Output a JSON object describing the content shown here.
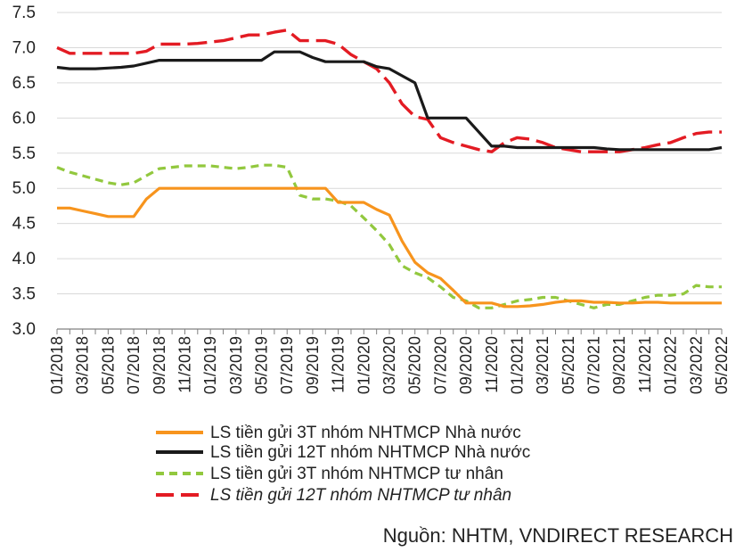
{
  "chart_data": {
    "type": "line",
    "title": "",
    "xlabel": "",
    "ylabel": "",
    "ylim": [
      3.0,
      7.5
    ],
    "yticks": [
      "7.5",
      "7.0",
      "6.5",
      "6.0",
      "5.5",
      "5.0",
      "4.5",
      "4.0",
      "3.5",
      "3.0"
    ],
    "x_tick_labels": [
      "01/2018",
      "03/2018",
      "05/2018",
      "07/2018",
      "09/2018",
      "11/2018",
      "01/2019",
      "03/2019",
      "05/2019",
      "07/2019",
      "09/2019",
      "11/2019",
      "01/2020",
      "03/2020",
      "05/2020",
      "07/2020",
      "09/2020",
      "11/2020",
      "01/2021",
      "03/2021",
      "05/2021",
      "07/2021",
      "09/2021",
      "11/2021",
      "01/2022",
      "03/2022",
      "05/2022"
    ],
    "x_months": [
      "01/2018",
      "02/2018",
      "03/2018",
      "04/2018",
      "05/2018",
      "06/2018",
      "07/2018",
      "08/2018",
      "09/2018",
      "10/2018",
      "11/2018",
      "12/2018",
      "01/2019",
      "02/2019",
      "03/2019",
      "04/2019",
      "05/2019",
      "06/2019",
      "07/2019",
      "08/2019",
      "09/2019",
      "10/2019",
      "11/2019",
      "12/2019",
      "01/2020",
      "02/2020",
      "03/2020",
      "04/2020",
      "05/2020",
      "06/2020",
      "07/2020",
      "08/2020",
      "09/2020",
      "10/2020",
      "11/2020",
      "12/2020",
      "01/2021",
      "02/2021",
      "03/2021",
      "04/2021",
      "05/2021",
      "06/2021",
      "07/2021",
      "08/2021",
      "09/2021",
      "10/2021",
      "11/2021",
      "12/2021",
      "01/2022",
      "02/2022",
      "03/2022",
      "04/2022",
      "05/2022"
    ],
    "grid": "horizontal",
    "legend_position": "bottom",
    "series": [
      {
        "name": "LS tiền gửi 3T nhóm NHTMCP Nhà nước",
        "color": "#f7941d",
        "style": "solid",
        "values": [
          4.72,
          4.72,
          4.68,
          4.64,
          4.6,
          4.6,
          4.6,
          4.85,
          5.0,
          5.0,
          5.0,
          5.0,
          5.0,
          5.0,
          5.0,
          5.0,
          5.0,
          5.0,
          5.0,
          5.0,
          5.0,
          5.0,
          4.8,
          4.8,
          4.8,
          4.7,
          4.62,
          4.25,
          3.95,
          3.8,
          3.72,
          3.55,
          3.37,
          3.37,
          3.37,
          3.32,
          3.32,
          3.33,
          3.35,
          3.38,
          3.4,
          3.4,
          3.38,
          3.38,
          3.37,
          3.37,
          3.38,
          3.38,
          3.37,
          3.37,
          3.37,
          3.37,
          3.37
        ]
      },
      {
        "name": "LS tiền gửi 12T nhóm NHTMCP Nhà nước",
        "color": "#1a1a1a",
        "style": "solid",
        "values": [
          6.72,
          6.7,
          6.7,
          6.7,
          6.71,
          6.72,
          6.74,
          6.78,
          6.82,
          6.82,
          6.82,
          6.82,
          6.82,
          6.82,
          6.82,
          6.82,
          6.82,
          6.94,
          6.94,
          6.94,
          6.86,
          6.8,
          6.8,
          6.8,
          6.8,
          6.73,
          6.7,
          6.6,
          6.5,
          6.0,
          6.0,
          6.0,
          6.0,
          5.8,
          5.6,
          5.6,
          5.58,
          5.58,
          5.58,
          5.58,
          5.58,
          5.58,
          5.58,
          5.56,
          5.55,
          5.55,
          5.55,
          5.55,
          5.55,
          5.55,
          5.55,
          5.55,
          5.58
        ]
      },
      {
        "name": "LS tiền gửi 3T nhóm NHTMCP tư nhân",
        "color": "#92c83e",
        "style": "short-dash",
        "values": [
          5.3,
          5.23,
          5.18,
          5.13,
          5.08,
          5.05,
          5.08,
          5.18,
          5.28,
          5.3,
          5.32,
          5.32,
          5.32,
          5.3,
          5.28,
          5.3,
          5.33,
          5.33,
          5.3,
          4.9,
          4.85,
          4.85,
          4.82,
          4.75,
          4.58,
          4.4,
          4.2,
          3.9,
          3.8,
          3.73,
          3.6,
          3.45,
          3.4,
          3.3,
          3.3,
          3.35,
          3.4,
          3.42,
          3.45,
          3.45,
          3.4,
          3.35,
          3.3,
          3.35,
          3.35,
          3.4,
          3.45,
          3.48,
          3.48,
          3.5,
          3.62,
          3.6,
          3.6
        ]
      },
      {
        "name": "LS tiền gửi 12T nhóm NHTMCP tư nhân",
        "color": "#e31b23",
        "style": "long-dash",
        "values": [
          7.0,
          6.92,
          6.92,
          6.92,
          6.92,
          6.92,
          6.92,
          6.95,
          7.05,
          7.05,
          7.05,
          7.06,
          7.08,
          7.1,
          7.14,
          7.18,
          7.18,
          7.22,
          7.25,
          7.1,
          7.1,
          7.1,
          7.05,
          6.9,
          6.8,
          6.7,
          6.5,
          6.2,
          6.02,
          5.98,
          5.72,
          5.65,
          5.6,
          5.55,
          5.52,
          5.65,
          5.72,
          5.7,
          5.65,
          5.58,
          5.55,
          5.52,
          5.52,
          5.52,
          5.52,
          5.55,
          5.58,
          5.62,
          5.65,
          5.72,
          5.78,
          5.8,
          5.8
        ]
      }
    ]
  },
  "legend": {
    "items": [
      "LS tiền gửi 3T nhóm NHTMCP Nhà nước",
      "LS tiền gửi 12T nhóm NHTMCP Nhà nước",
      "LS tiền gửi 3T nhóm NHTMCP tư nhân",
      "LS tiền gửi 12T nhóm NHTMCP tư nhân"
    ]
  },
  "source_note": "Nguồn: NHTM, VNDIRECT RESEARCH"
}
